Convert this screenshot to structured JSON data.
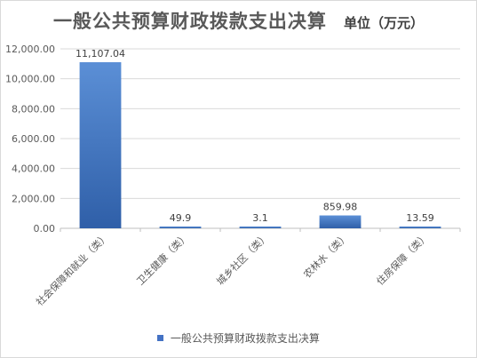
{
  "title": "一般公共预算财政拨款支出决算",
  "unit": "单位（万元）",
  "colors": {
    "bar_top": "#5b8fd6",
    "bar_bottom": "#2f5fa8",
    "grid": "#d9d9d9",
    "axis": "#bfbfbf",
    "legend": "#4472c4"
  },
  "chart_data": {
    "type": "bar",
    "categories": [
      "社会保障和就业（类）",
      "卫生健康（类）",
      "城乡社区（类）",
      "农林水（类）",
      "住房保障（类）"
    ],
    "series": [
      {
        "name": "一般公共预算财政拨款支出决算",
        "values": [
          11107.04,
          49.9,
          3.1,
          859.98,
          13.59
        ],
        "labels": [
          "11,107.04",
          "49.9",
          "3.1",
          "859.98",
          "13.59"
        ]
      }
    ],
    "y_ticks": [
      "0.00",
      "2,000.00",
      "4,000.00",
      "6,000.00",
      "8,000.00",
      "10,000.00",
      "12,000.00"
    ],
    "ylim": [
      0,
      12000
    ],
    "grid": true,
    "legend_position": "bottom"
  }
}
